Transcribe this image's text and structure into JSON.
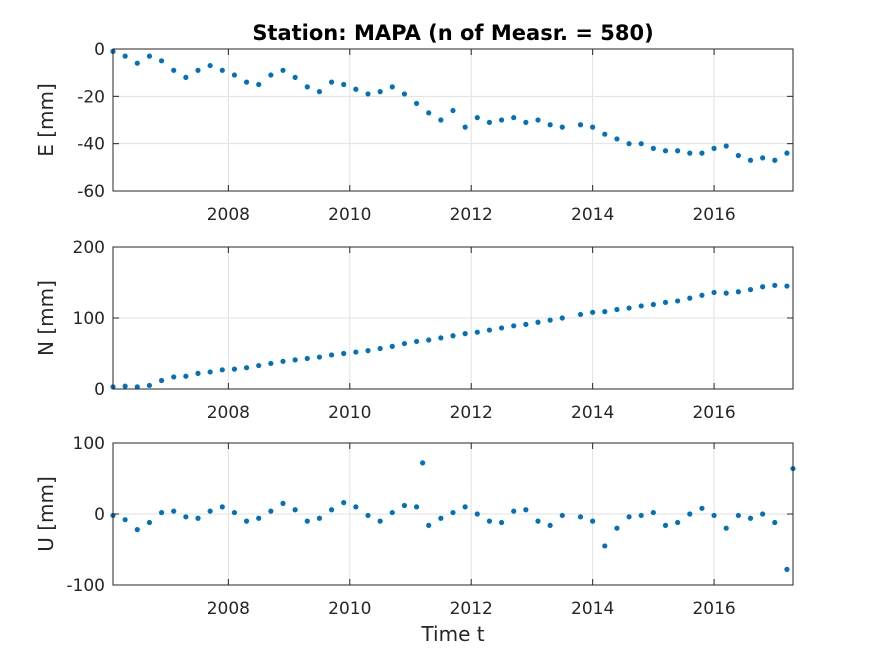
{
  "chart_data": {
    "type": "scatter",
    "title": "Station: MAPA (n of Measr. = 580)",
    "xlabel": "Time t",
    "marker_color": "#0072BD",
    "grid": true,
    "xlim": [
      2006.1,
      2017.3
    ],
    "xticks": [
      2008,
      2010,
      2012,
      2014,
      2016
    ],
    "xtick_labels": [
      "2008",
      "2010",
      "2012",
      "2014",
      "2016"
    ],
    "panels": [
      {
        "ylabel": "E [mm]",
        "ylim": [
          -60,
          0
        ],
        "yticks": [
          0,
          -20,
          -40,
          -60
        ],
        "ytick_labels": [
          "0",
          "-20",
          "-40",
          "-60"
        ],
        "series": [
          {
            "x": [
              2006.1,
              2006.3,
              2006.5,
              2006.7,
              2006.9,
              2007.1,
              2007.3,
              2007.5,
              2007.7,
              2007.9,
              2008.1,
              2008.3,
              2008.5,
              2008.7,
              2008.9,
              2009.1,
              2009.3,
              2009.5,
              2009.7,
              2009.9,
              2010.1,
              2010.3,
              2010.5,
              2010.7,
              2010.9,
              2011.1,
              2011.3,
              2011.5,
              2011.7,
              2011.9,
              2012.1,
              2012.3,
              2012.5,
              2012.7,
              2012.9,
              2013.1,
              2013.3,
              2013.5,
              2013.8,
              2014.0,
              2014.2,
              2014.4,
              2014.6,
              2014.8,
              2015.0,
              2015.2,
              2015.4,
              2015.6,
              2015.8,
              2016.0,
              2016.2,
              2016.4,
              2016.6,
              2016.8,
              2017.0,
              2017.2
            ],
            "y": [
              -1,
              -3,
              -6,
              -3,
              -5,
              -9,
              -12,
              -9,
              -7,
              -9,
              -11,
              -14,
              -15,
              -11,
              -9,
              -12,
              -16,
              -18,
              -14,
              -15,
              -17,
              -19,
              -18,
              -16,
              -19,
              -23,
              -27,
              -30,
              -26,
              -33,
              -29,
              -31,
              -30,
              -29,
              -31,
              -30,
              -32,
              -33,
              -32,
              -33,
              -36,
              -38,
              -40,
              -40,
              -42,
              -43,
              -43,
              -44,
              -44,
              -42,
              -41,
              -45,
              -47,
              -46,
              -47,
              -44
            ]
          }
        ]
      },
      {
        "ylabel": "N [mm]",
        "ylim": [
          0,
          200
        ],
        "yticks": [
          0,
          100,
          200
        ],
        "ytick_labels": [
          "0",
          "100",
          "200"
        ],
        "series": [
          {
            "x": [
              2006.1,
              2006.3,
              2006.5,
              2006.7,
              2006.9,
              2007.1,
              2007.3,
              2007.5,
              2007.7,
              2007.9,
              2008.1,
              2008.3,
              2008.5,
              2008.7,
              2008.9,
              2009.1,
              2009.3,
              2009.5,
              2009.7,
              2009.9,
              2010.1,
              2010.3,
              2010.5,
              2010.7,
              2010.9,
              2011.1,
              2011.3,
              2011.5,
              2011.7,
              2011.9,
              2012.1,
              2012.3,
              2012.5,
              2012.7,
              2012.9,
              2013.1,
              2013.3,
              2013.5,
              2013.8,
              2014.0,
              2014.2,
              2014.4,
              2014.6,
              2014.8,
              2015.0,
              2015.2,
              2015.4,
              2015.6,
              2015.8,
              2016.0,
              2016.2,
              2016.4,
              2016.6,
              2016.8,
              2017.0,
              2017.2
            ],
            "y": [
              3,
              4,
              3,
              5,
              12,
              17,
              18,
              22,
              24,
              27,
              28,
              30,
              33,
              36,
              39,
              41,
              43,
              45,
              48,
              50,
              52,
              54,
              57,
              60,
              64,
              67,
              69,
              72,
              75,
              78,
              80,
              83,
              86,
              89,
              91,
              94,
              97,
              100,
              105,
              108,
              109,
              112,
              114,
              117,
              119,
              122,
              124,
              128,
              132,
              136,
              135,
              137,
              140,
              144,
              146,
              145
            ]
          }
        ]
      },
      {
        "ylabel": "U [mm]",
        "ylim": [
          -100,
          100
        ],
        "yticks": [
          100,
          0,
          -100
        ],
        "ytick_labels": [
          "100",
          "0",
          "-100"
        ],
        "series": [
          {
            "x": [
              2006.1,
              2006.3,
              2006.5,
              2006.7,
              2006.9,
              2007.1,
              2007.3,
              2007.5,
              2007.7,
              2007.9,
              2008.1,
              2008.3,
              2008.5,
              2008.7,
              2008.9,
              2009.1,
              2009.3,
              2009.5,
              2009.7,
              2009.9,
              2010.1,
              2010.3,
              2010.5,
              2010.7,
              2010.9,
              2011.1,
              2011.2,
              2011.3,
              2011.5,
              2011.7,
              2011.9,
              2012.1,
              2012.3,
              2012.5,
              2012.7,
              2012.9,
              2013.1,
              2013.3,
              2013.5,
              2013.8,
              2014.0,
              2014.2,
              2014.4,
              2014.6,
              2014.8,
              2015.0,
              2015.2,
              2015.4,
              2015.6,
              2015.8,
              2016.0,
              2016.2,
              2016.4,
              2016.6,
              2016.8,
              2017.0,
              2017.2,
              2017.3
            ],
            "y": [
              -2,
              -8,
              -22,
              -12,
              2,
              4,
              -4,
              -6,
              4,
              10,
              2,
              -10,
              -6,
              4,
              15,
              6,
              -10,
              -6,
              6,
              16,
              10,
              -2,
              -10,
              2,
              12,
              10,
              72,
              -16,
              -6,
              2,
              10,
              0,
              -10,
              -12,
              4,
              6,
              -10,
              -16,
              -2,
              -4,
              -10,
              -45,
              -20,
              -4,
              -2,
              2,
              -16,
              -12,
              0,
              8,
              -2,
              -20,
              -2,
              -6,
              0,
              -12,
              -78,
              64
            ]
          }
        ]
      }
    ]
  }
}
